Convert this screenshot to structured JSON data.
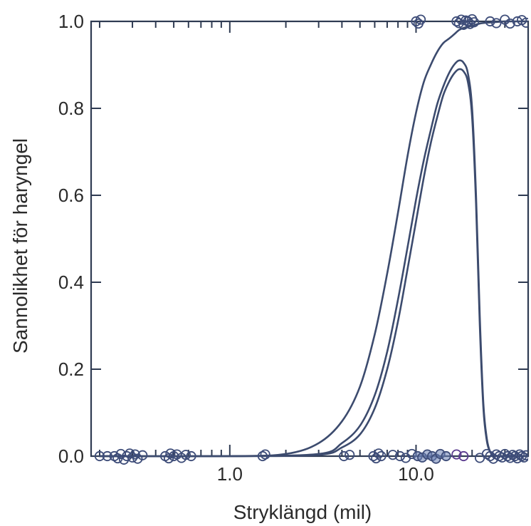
{
  "colors": {
    "curve": "#3c4b6e",
    "axis": "#2f3b52",
    "point_stroke": "#3e4d79",
    "point_fill_cluster": "#6a7fb2",
    "point_purple": "#5b3c8f"
  },
  "chart_data": {
    "type": "scatter",
    "title": "",
    "xlabel": "Stryklängd (mil)",
    "ylabel": "Sannolikhet för haryngel",
    "x_scale": "log",
    "xlim": [
      0.18,
      40
    ],
    "ylim": [
      0,
      1
    ],
    "x_ticks": [
      {
        "value": 1,
        "label": "1.0"
      },
      {
        "value": 10,
        "label": "10.0"
      }
    ],
    "y_ticks": [
      {
        "value": 0,
        "label": "0.0"
      },
      {
        "value": 0.2,
        "label": "0.2"
      },
      {
        "value": 0.4,
        "label": "0.4"
      },
      {
        "value": 0.6,
        "label": "0.6"
      },
      {
        "value": 0.8,
        "label": "0.8"
      },
      {
        "value": 1,
        "label": "1.0"
      }
    ],
    "grid": false,
    "legend": "none",
    "series": [
      {
        "type": "line",
        "x": [
          0.2,
          1,
          2,
          3,
          4,
          5,
          6,
          7,
          8,
          9,
          10,
          11,
          12,
          13,
          14,
          15,
          16,
          17,
          18,
          20,
          22,
          24,
          26,
          28,
          30,
          32,
          35,
          40
        ],
        "y": [
          0,
          0,
          0.005,
          0.03,
          0.08,
          0.16,
          0.28,
          0.42,
          0.56,
          0.69,
          0.79,
          0.86,
          0.9,
          0.93,
          0.95,
          0.96,
          0.97,
          0.98,
          0.985,
          0.99,
          0.995,
          0.997,
          0.998,
          0.999,
          1,
          1,
          1,
          1
        ]
      },
      {
        "type": "line",
        "x": [
          0.2,
          1,
          3,
          4,
          5,
          6,
          7,
          8,
          9,
          10,
          11,
          12,
          13,
          14,
          15,
          16,
          17,
          18,
          19,
          20,
          21,
          22,
          23,
          24,
          25,
          26,
          27,
          28,
          30,
          40
        ],
        "y": [
          0,
          0,
          0.005,
          0.03,
          0.07,
          0.14,
          0.24,
          0.36,
          0.48,
          0.59,
          0.68,
          0.75,
          0.81,
          0.85,
          0.88,
          0.9,
          0.91,
          0.905,
          0.88,
          0.8,
          0.6,
          0.32,
          0.12,
          0.04,
          0.01,
          0.003,
          0.001,
          0,
          0,
          0
        ]
      },
      {
        "type": "line",
        "x": [
          0.2,
          1,
          3,
          4,
          5,
          6,
          7,
          8,
          9,
          10,
          11,
          12,
          13,
          14,
          15,
          16,
          17,
          18,
          19,
          20,
          21,
          22,
          23,
          24,
          25,
          26,
          27,
          28,
          30,
          40
        ],
        "y": [
          0,
          0,
          0.003,
          0.02,
          0.05,
          0.11,
          0.2,
          0.31,
          0.43,
          0.54,
          0.64,
          0.72,
          0.78,
          0.83,
          0.86,
          0.88,
          0.89,
          0.885,
          0.86,
          0.78,
          0.58,
          0.3,
          0.11,
          0.035,
          0.01,
          0.003,
          0.001,
          0,
          0,
          0
        ]
      },
      {
        "type": "scatter",
        "x": [
          0.2,
          0.22,
          0.24,
          0.25,
          0.26,
          0.27,
          0.28,
          0.29,
          0.3,
          0.31,
          0.32,
          0.34,
          0.45,
          0.47,
          0.48,
          0.5,
          0.52,
          0.55,
          0.58,
          0.62,
          1.5,
          1.55,
          4.1,
          4.4,
          5.9,
          6.1,
          6.3,
          6.5,
          7.5,
          8.2,
          8.8,
          9.5,
          10.2,
          10.8,
          11.5,
          12.2,
          12.8,
          13.5,
          14.5,
          16.5,
          18.0,
          22.0,
          24.0,
          25.0,
          26.0,
          27.0,
          28.0,
          29.0,
          30.0,
          31.0,
          32.0,
          33.0,
          34.0,
          35.0,
          36.0,
          37.0,
          38.0,
          39.0
        ],
        "y": [
          0,
          0,
          0,
          -0.005,
          0.005,
          -0.008,
          0,
          0.006,
          -0.003,
          0.004,
          -0.006,
          0.002,
          0,
          -0.005,
          0.006,
          0,
          0.004,
          -0.004,
          0.003,
          0,
          0,
          0.004,
          0,
          0.003,
          0,
          -0.005,
          0.006,
          0,
          0.003,
          0,
          -0.004,
          0.005,
          0,
          -0.003,
          0.004,
          0,
          -0.006,
          0.005,
          0,
          0.004,
          0,
          -0.004,
          0.005,
          0,
          -0.006,
          0.004,
          0,
          -0.003,
          0.005,
          0,
          -0.004,
          0.003,
          0,
          -0.005,
          0.004,
          0,
          -0.003,
          0.002
        ]
      },
      {
        "type": "scatter",
        "x": [
          10.0,
          10.3,
          10.6,
          16.5,
          17.0,
          17.5,
          18.0,
          18.5,
          19.0,
          19.5,
          20.0,
          20.5,
          25.0,
          27.0,
          30.0,
          32.0,
          35.0,
          37.0,
          39.0
        ],
        "y": [
          1,
          0.995,
          1.004,
          1,
          0.996,
          1.004,
          0.992,
          1.002,
          1,
          0.994,
          1.005,
          0.998,
          1,
          0.996,
          1.004,
          0.995,
          1,
          1.003,
          0.997
        ]
      }
    ]
  }
}
